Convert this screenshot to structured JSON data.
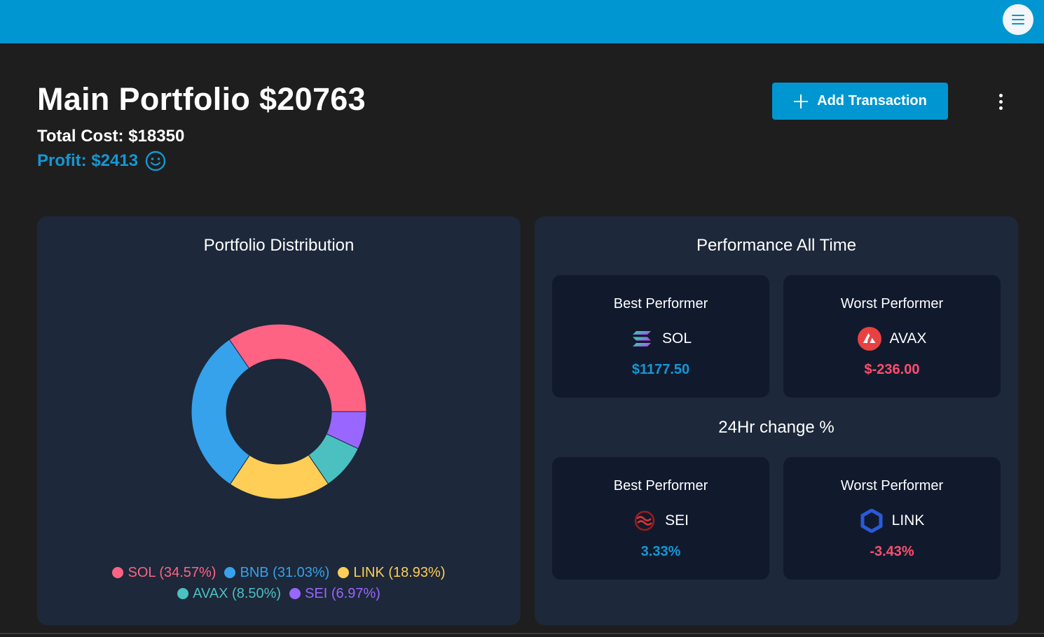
{
  "header": {
    "menu_icon": "hamburger-icon",
    "bar_color": "#0096d1"
  },
  "portfolio": {
    "title": "Main Portfolio $20763",
    "total_cost": "Total Cost: $18350",
    "profit": "Profit: $2413",
    "profit_icon": "smiley-icon"
  },
  "toolbar": {
    "add_label": "Add Transaction",
    "add_icon": "plus-icon",
    "more_icon": "more-vertical-icon"
  },
  "distribution": {
    "title": "Portfolio Distribution",
    "legend": [
      {
        "label": "SOL (34.57%)",
        "color": "#ff6384"
      },
      {
        "label": "BNB (31.03%)",
        "color": "#36a2eb"
      },
      {
        "label": "LINK (18.93%)",
        "color": "#ffce56"
      },
      {
        "label": "AVAX (8.50%)",
        "color": "#4bc0c0"
      },
      {
        "label": "SEI (6.97%)",
        "color": "#9966ff"
      }
    ]
  },
  "chart_data": {
    "type": "pie",
    "title": "Portfolio Distribution",
    "categories": [
      "SOL",
      "BNB",
      "LINK",
      "AVAX",
      "SEI"
    ],
    "values": [
      34.57,
      31.03,
      18.93,
      8.5,
      6.97
    ],
    "colors": [
      "#ff6384",
      "#36a2eb",
      "#ffce56",
      "#4bc0c0",
      "#9966ff"
    ],
    "legend_position": "bottom"
  },
  "performance": {
    "title": "Performance All Time",
    "best": {
      "label": "Best Performer",
      "coin": "SOL",
      "icon": "solana-icon",
      "value": "$1177.50"
    },
    "worst": {
      "label": "Worst Performer",
      "coin": "AVAX",
      "icon": "avalanche-icon",
      "value": "$-236.00"
    }
  },
  "change24h": {
    "title": "24Hr change %",
    "best": {
      "label": "Best Performer",
      "coin": "SEI",
      "icon": "sei-icon",
      "value": "3.33%"
    },
    "worst": {
      "label": "Worst Performer",
      "coin": "LINK",
      "icon": "chainlink-icon",
      "value": "-3.43%"
    }
  },
  "colors": {
    "accent": "#0096d1",
    "positive": "#1597d4",
    "negative": "#ff4d6d",
    "card": "#1d283a",
    "inner_card": "#111a2d",
    "background": "#1e1e1e"
  }
}
